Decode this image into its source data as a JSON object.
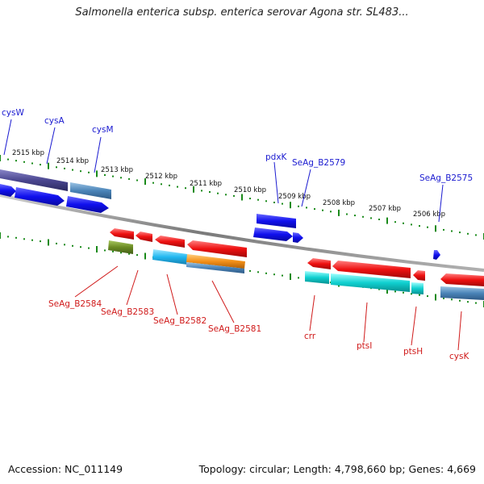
{
  "title": "Salmonella enterica subsp. enterica serovar Agona str. SL483...",
  "footer": {
    "accession": "Accession: NC_011149",
    "summary": "Topology: circular; Length: 4,798,660 bp; Genes: 4,669"
  },
  "ticks": [
    "2515 kbp",
    "2514 kbp",
    "2513 kbp",
    "2512 kbp",
    "2511 kbp",
    "2510 kbp",
    "2509 kbp",
    "2508 kbp",
    "2507 kbp",
    "2506 kbp"
  ],
  "top_labels": [
    "cysW",
    "cysA",
    "cysM",
    "pdxK",
    "SeAg_B2579",
    "SeAg_B2575"
  ],
  "bottom_labels": [
    "SeAg_B2584",
    "SeAg_B2583",
    "SeAg_B2582",
    "SeAg_B2581",
    "crr",
    "ptsI",
    "ptsH",
    "cysK"
  ],
  "colors": {
    "forward_gene": "#1010ee",
    "reverse_gene": "#ee1010",
    "top_label": "#1a1ad0",
    "bottom_label": "#d01a1a",
    "tick": "#1a8a1a",
    "backbone": "#888888"
  }
}
